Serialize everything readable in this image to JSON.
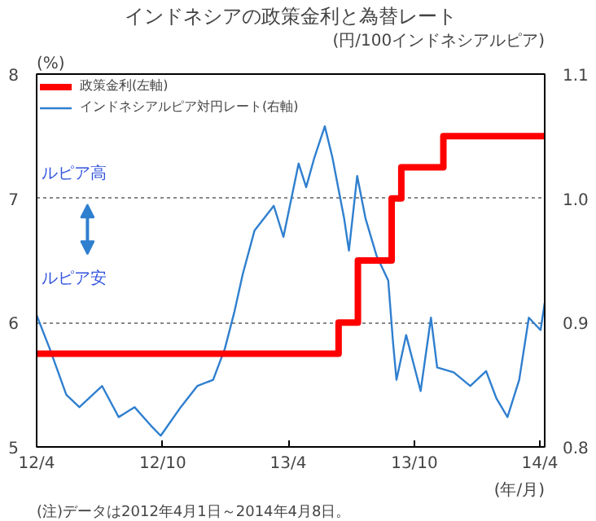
{
  "chart_data": {
    "type": "line",
    "title": "インドネシアの政策金利と為替レート",
    "ylabel": "(%)",
    "y2label": "(円/100インドネシアルピア)",
    "xlabel": "(年/月)",
    "xlim": [
      "2012-04-01",
      "2014-04-08"
    ],
    "xticks": [
      {
        "value": "2012-04-01",
        "label": "12/4"
      },
      {
        "value": "2012-10-01",
        "label": "12/10"
      },
      {
        "value": "2013-04-01",
        "label": "13/4"
      },
      {
        "value": "2013-10-01",
        "label": "13/10"
      },
      {
        "value": "2014-04-01",
        "label": "14/4"
      }
    ],
    "ylim": [
      5,
      8
    ],
    "yticks": [
      5,
      6,
      7,
      8
    ],
    "y2lim": [
      0.8,
      1.1
    ],
    "y2ticks": [
      0.8,
      0.9,
      {
        "value": 1.0,
        "label": "1.0"
      },
      1.1
    ],
    "grid": "y",
    "legend": "top left",
    "series": [
      {
        "name": "政策金利(左軸)",
        "type": "step",
        "color": "#ff0000",
        "x": [
          "2012-04-01",
          "2013-06-13",
          "2013-07-11",
          "2013-08-29",
          "2013-09-12",
          "2013-11-12",
          "2014-04-08"
        ],
        "values": [
          5.75,
          6.0,
          6.5,
          7.0,
          7.25,
          7.5,
          7.5
        ]
      },
      {
        "name": "インドネシアルピア対円レート(右軸)",
        "axis": "y2",
        "color": "#2f7fcf",
        "x": [
          "2012-04-01",
          "2012-04-20",
          "2012-05-14",
          "2012-06-02",
          "2012-07-05",
          "2012-07-29",
          "2012-08-21",
          "2012-09-14",
          "2012-09-28",
          "2012-10-27",
          "2012-11-20",
          "2012-12-13",
          "2012-12-30",
          "2013-01-13",
          "2013-01-25",
          "2013-02-11",
          "2013-03-11",
          "2013-03-25",
          "2013-04-16",
          "2013-04-27",
          "2013-05-09",
          "2013-05-24",
          "2013-06-04",
          "2013-06-21",
          "2013-06-28",
          "2013-07-10",
          "2013-07-22",
          "2013-08-07",
          "2013-08-24",
          "2013-08-31",
          "2013-09-05",
          "2013-09-19",
          "2013-10-10",
          "2013-10-25",
          "2013-11-03",
          "2013-11-27",
          "2013-12-21",
          "2014-01-13",
          "2014-01-28",
          "2014-02-13",
          "2014-03-02",
          "2014-03-16",
          "2014-04-02",
          "2014-04-08"
        ],
        "values": [
          0.906,
          0.879,
          0.842,
          0.832,
          0.849,
          0.824,
          0.832,
          0.817,
          0.809,
          0.832,
          0.849,
          0.854,
          0.879,
          0.909,
          0.939,
          0.974,
          0.994,
          0.969,
          1.028,
          1.009,
          1.033,
          1.058,
          1.033,
          0.984,
          0.958,
          1.018,
          0.984,
          0.954,
          0.934,
          0.884,
          0.854,
          0.89,
          0.845,
          0.904,
          0.864,
          0.86,
          0.849,
          0.861,
          0.839,
          0.824,
          0.854,
          0.904,
          0.894,
          0.916
        ]
      }
    ],
    "annotations": [
      "ルピア高",
      "ルピア安",
      "(注)データは2012年4月1日～2014年4月8日。"
    ]
  }
}
